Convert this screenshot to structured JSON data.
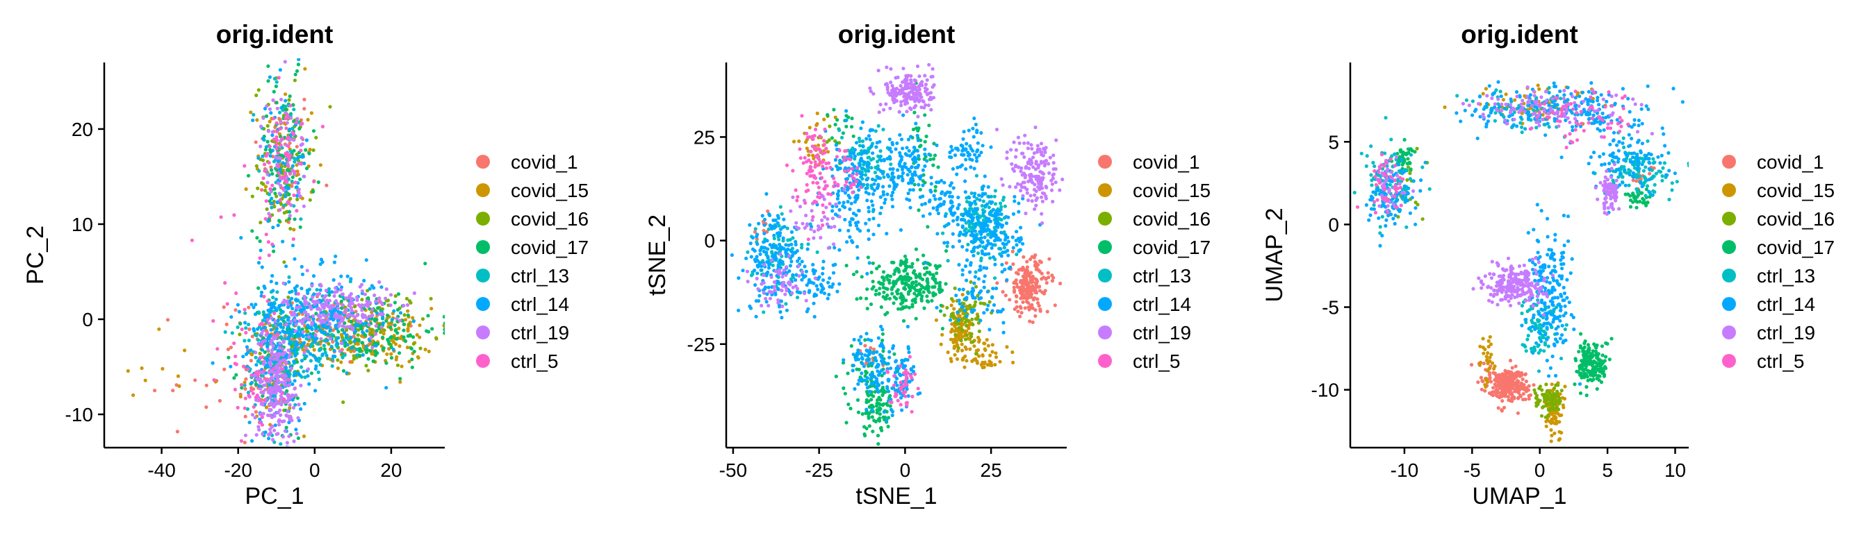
{
  "chart_data": [
    {
      "type": "scatter",
      "title": "orig.ident",
      "xlabel": "PC_1",
      "ylabel": "PC_2",
      "xlim": [
        -55,
        34
      ],
      "ylim": [
        -13.5,
        27
      ],
      "xticks": [
        -40,
        -20,
        0,
        20
      ],
      "yticks": [
        -10,
        0,
        10,
        20
      ],
      "legend_position": "right",
      "series": [
        {
          "name": "covid_1",
          "color": "#F8766D",
          "clusters": [
            {
              "x": -8,
              "y": 17,
              "sx": 4,
              "sy": 4,
              "n": 40
            },
            {
              "x": 2,
              "y": -1,
              "sx": 10,
              "sy": 2,
              "n": 120
            },
            {
              "x": -12,
              "y": -6,
              "sx": 4,
              "sy": 3,
              "n": 60
            },
            {
              "x": -28,
              "y": -6,
              "sx": 12,
              "sy": 3,
              "n": 18
            }
          ]
        },
        {
          "name": "covid_15",
          "color": "#CD9600",
          "clusters": [
            {
              "x": -8,
              "y": 17,
              "sx": 4,
              "sy": 4,
              "n": 40
            },
            {
              "x": 15,
              "y": -2,
              "sx": 8,
              "sy": 1.6,
              "n": 150
            },
            {
              "x": -10,
              "y": -6,
              "sx": 4,
              "sy": 3,
              "n": 50
            },
            {
              "x": -40,
              "y": -6,
              "sx": 8,
              "sy": 2.5,
              "n": 10
            }
          ]
        },
        {
          "name": "covid_16",
          "color": "#7CAE00",
          "clusters": [
            {
              "x": -8,
              "y": 17,
              "sx": 4,
              "sy": 4,
              "n": 70
            },
            {
              "x": -10,
              "y": 13,
              "sx": 2,
              "sy": 1.5,
              "n": 20
            },
            {
              "x": 12,
              "y": -1,
              "sx": 9,
              "sy": 2,
              "n": 100
            },
            {
              "x": -10,
              "y": -5,
              "sx": 4,
              "sy": 3,
              "n": 40
            }
          ]
        },
        {
          "name": "covid_17",
          "color": "#00BE67",
          "clusters": [
            {
              "x": -8,
              "y": 17,
              "sx": 4,
              "sy": 4,
              "n": 80
            },
            {
              "x": 14,
              "y": -1,
              "sx": 9,
              "sy": 2,
              "n": 160
            },
            {
              "x": -10,
              "y": -5,
              "sx": 4,
              "sy": 4,
              "n": 60
            }
          ]
        },
        {
          "name": "ctrl_13",
          "color": "#00BFC4",
          "clusters": [
            {
              "x": -8,
              "y": 17,
              "sx": 4,
              "sy": 4,
              "n": 40
            },
            {
              "x": -2,
              "y": -1,
              "sx": 8,
              "sy": 2.5,
              "n": 130
            },
            {
              "x": -10,
              "y": -5,
              "sx": 4,
              "sy": 3.5,
              "n": 70
            }
          ]
        },
        {
          "name": "ctrl_14",
          "color": "#00A9FF",
          "clusters": [
            {
              "x": -8,
              "y": 17,
              "sx": 3.5,
              "sy": 4,
              "n": 60
            },
            {
              "x": 0,
              "y": 0,
              "sx": 9,
              "sy": 2.5,
              "n": 260
            },
            {
              "x": -10,
              "y": -4,
              "sx": 4,
              "sy": 4,
              "n": 160
            }
          ]
        },
        {
          "name": "ctrl_19",
          "color": "#C77CFF",
          "clusters": [
            {
              "x": -8,
              "y": 17,
              "sx": 3,
              "sy": 3.5,
              "n": 60
            },
            {
              "x": 6,
              "y": 1,
              "sx": 7,
              "sy": 1.5,
              "n": 200
            },
            {
              "x": -10,
              "y": -7,
              "sx": 3,
              "sy": 3,
              "n": 230
            }
          ]
        },
        {
          "name": "ctrl_5",
          "color": "#FF61CC",
          "clusters": [
            {
              "x": -8,
              "y": 17,
              "sx": 3,
              "sy": 3,
              "n": 60
            },
            {
              "x": -16,
              "y": 5,
              "sx": 5,
              "sy": 7,
              "n": 30
            },
            {
              "x": -16,
              "y": -6,
              "sx": 4,
              "sy": 3,
              "n": 40
            }
          ]
        }
      ]
    },
    {
      "type": "scatter",
      "title": "orig.ident",
      "xlabel": "tSNE_1",
      "ylabel": "tSNE_2",
      "xlim": [
        -52,
        47
      ],
      "ylim": [
        -50,
        43
      ],
      "xticks": [
        -50,
        -25,
        0,
        25
      ],
      "yticks": [
        -25,
        0,
        25
      ],
      "legend_position": "right",
      "series": [
        {
          "name": "covid_1",
          "color": "#F8766D",
          "clusters": [
            {
              "x": 36,
              "y": -11,
              "sx": 3,
              "sy": 3.5,
              "n": 200
            },
            {
              "x": -42,
              "y": 3,
              "sx": 2,
              "sy": 2,
              "n": 10
            },
            {
              "x": -10,
              "y": -28,
              "sx": 2,
              "sy": 2,
              "n": 10
            }
          ]
        },
        {
          "name": "covid_15",
          "color": "#CD9600",
          "clusters": [
            {
              "x": 16,
              "y": -22,
              "sx": 2.5,
              "sy": 3.5,
              "n": 110
            },
            {
              "x": 24,
              "y": -28,
              "sx": 3,
              "sy": 2,
              "n": 40
            },
            {
              "x": -26,
              "y": 23,
              "sx": 3,
              "sy": 3,
              "n": 30
            }
          ]
        },
        {
          "name": "covid_16",
          "color": "#7CAE00",
          "clusters": [
            {
              "x": 18,
              "y": -18,
              "sx": 3,
              "sy": 3,
              "n": 70
            },
            {
              "x": -22,
              "y": 24,
              "sx": 3,
              "sy": 3,
              "n": 10
            }
          ]
        },
        {
          "name": "covid_17",
          "color": "#00BE67",
          "clusters": [
            {
              "x": 1,
              "y": -11,
              "sx": 6,
              "sy": 3,
              "n": 260
            },
            {
              "x": -9,
              "y": -40,
              "sx": 3,
              "sy": 3.5,
              "n": 100
            },
            {
              "x": -10,
              "y": -30,
              "sx": 3,
              "sy": 3,
              "n": 40
            },
            {
              "x": 5,
              "y": 20,
              "sx": 2,
              "sy": 6,
              "n": 40
            },
            {
              "x": -18,
              "y": 28,
              "sx": 2,
              "sy": 2,
              "n": 15
            }
          ]
        },
        {
          "name": "ctrl_13",
          "color": "#00BFC4",
          "clusters": [
            {
              "x": 22,
              "y": 5,
              "sx": 4,
              "sy": 4,
              "n": 120
            },
            {
              "x": -12,
              "y": 20,
              "sx": 4,
              "sy": 4,
              "n": 80
            },
            {
              "x": -36,
              "y": -4,
              "sx": 4,
              "sy": 5,
              "n": 80
            }
          ]
        },
        {
          "name": "ctrl_14",
          "color": "#00A9FF",
          "clusters": [
            {
              "x": 24,
              "y": 2,
              "sx": 5,
              "sy": 5,
              "n": 220
            },
            {
              "x": -14,
              "y": 12,
              "sx": 5,
              "sy": 7,
              "n": 200
            },
            {
              "x": -38,
              "y": -5,
              "sx": 4,
              "sy": 6,
              "n": 180
            },
            {
              "x": 0,
              "y": 18,
              "sx": 4,
              "sy": 4,
              "n": 120
            },
            {
              "x": 18,
              "y": 22,
              "sx": 3,
              "sy": 3,
              "n": 60
            },
            {
              "x": 12,
              "y": 10,
              "sx": 3,
              "sy": 3,
              "n": 50
            },
            {
              "x": 21,
              "y": -14,
              "sx": 4,
              "sy": 3,
              "n": 60
            },
            {
              "x": -10,
              "y": -30,
              "sx": 3,
              "sy": 4,
              "n": 100
            },
            {
              "x": -1,
              "y": -34,
              "sx": 2.5,
              "sy": 4,
              "n": 80
            },
            {
              "x": -26,
              "y": -10,
              "sx": 3,
              "sy": 3,
              "n": 60
            }
          ]
        },
        {
          "name": "ctrl_19",
          "color": "#C77CFF",
          "clusters": [
            {
              "x": 1,
              "y": 36,
              "sx": 3.5,
              "sy": 2.5,
              "n": 180
            },
            {
              "x": 38,
              "y": 16,
              "sx": 3.5,
              "sy": 5,
              "n": 160
            },
            {
              "x": -36,
              "y": -10,
              "sx": 4,
              "sy": 3,
              "n": 60
            },
            {
              "x": -26,
              "y": 5,
              "sx": 3,
              "sy": 4,
              "n": 40
            }
          ]
        },
        {
          "name": "ctrl_5",
          "color": "#FF61CC",
          "clusters": [
            {
              "x": -26,
              "y": 18,
              "sx": 3,
              "sy": 5,
              "n": 100
            },
            {
              "x": -1,
              "y": -35,
              "sx": 2,
              "sy": 3,
              "n": 40
            },
            {
              "x": -16,
              "y": 16,
              "sx": 2,
              "sy": 2,
              "n": 20
            }
          ]
        }
      ]
    },
    {
      "type": "scatter",
      "title": "orig.ident",
      "xlabel": "UMAP_1",
      "ylabel": "UMAP_2",
      "xlim": [
        -14,
        11
      ],
      "ylim": [
        -13.5,
        9.8
      ],
      "xticks": [
        -10,
        -5,
        0,
        5,
        10
      ],
      "yticks": [
        -10,
        -5,
        0,
        5
      ],
      "legend_position": "right",
      "series": [
        {
          "name": "covid_1",
          "color": "#F8766D",
          "clusters": [
            {
              "x": -2.3,
              "y": -9.7,
              "sx": 0.7,
              "sy": 0.5,
              "n": 260
            },
            {
              "x": -3.8,
              "y": -9.2,
              "sx": 0.5,
              "sy": 0.6,
              "n": 20
            },
            {
              "x": 7.5,
              "y": 2.8,
              "sx": 0.5,
              "sy": 0.4,
              "n": 15
            }
          ]
        },
        {
          "name": "covid_15",
          "color": "#CD9600",
          "clusters": [
            {
              "x": 1.0,
              "y": -11.2,
              "sx": 0.4,
              "sy": 0.8,
              "n": 80
            },
            {
              "x": 0.3,
              "y": 7.2,
              "sx": 2.5,
              "sy": 0.6,
              "n": 60
            },
            {
              "x": -3.8,
              "y": -8.3,
              "sx": 0.3,
              "sy": 0.8,
              "n": 30
            }
          ]
        },
        {
          "name": "covid_16",
          "color": "#7CAE00",
          "clusters": [
            {
              "x": 0.6,
              "y": -10.6,
              "sx": 0.5,
              "sy": 0.5,
              "n": 80
            },
            {
              "x": -10.2,
              "y": 2.2,
              "sx": 0.8,
              "sy": 1.0,
              "n": 20
            }
          ]
        },
        {
          "name": "covid_17",
          "color": "#00BE67",
          "clusters": [
            {
              "x": 3.9,
              "y": -8.4,
              "sx": 0.6,
              "sy": 0.7,
              "n": 170
            },
            {
              "x": -10.0,
              "y": 4.0,
              "sx": 0.5,
              "sy": 0.4,
              "n": 40
            },
            {
              "x": 7.2,
              "y": 1.6,
              "sx": 0.5,
              "sy": 0.3,
              "n": 30
            }
          ]
        },
        {
          "name": "ctrl_13",
          "color": "#00BFC4",
          "clusters": [
            {
              "x": -11.0,
              "y": 2.3,
              "sx": 0.9,
              "sy": 1.1,
              "n": 100
            },
            {
              "x": 7.2,
              "y": 3.2,
              "sx": 1.2,
              "sy": 0.7,
              "n": 110
            },
            {
              "x": 0.0,
              "y": -6.0,
              "sx": 0.6,
              "sy": 1.0,
              "n": 80
            },
            {
              "x": -1.5,
              "y": 7.0,
              "sx": 2.0,
              "sy": 0.7,
              "n": 60
            }
          ]
        },
        {
          "name": "ctrl_14",
          "color": "#00A9FF",
          "clusters": [
            {
              "x": 0.8,
              "y": -4.5,
              "sx": 0.8,
              "sy": 1.8,
              "n": 200
            },
            {
              "x": -11.0,
              "y": 1.8,
              "sx": 0.9,
              "sy": 1.0,
              "n": 100
            },
            {
              "x": 1.5,
              "y": 7.0,
              "sx": 3.2,
              "sy": 0.7,
              "n": 200
            },
            {
              "x": 6.5,
              "y": 4.0,
              "sx": 1.5,
              "sy": 1.0,
              "n": 100
            }
          ]
        },
        {
          "name": "ctrl_19",
          "color": "#C77CFF",
          "clusters": [
            {
              "x": -1.8,
              "y": -3.6,
              "sx": 1.1,
              "sy": 0.6,
              "n": 220
            },
            {
              "x": 5.2,
              "y": 2.0,
              "sx": 0.4,
              "sy": 0.6,
              "n": 80
            },
            {
              "x": 1.0,
              "y": 7.0,
              "sx": 3.0,
              "sy": 0.6,
              "n": 100
            },
            {
              "x": -11.2,
              "y": 2.2,
              "sx": 0.7,
              "sy": 0.8,
              "n": 40
            }
          ]
        },
        {
          "name": "ctrl_5",
          "color": "#FF61CC",
          "clusters": [
            {
              "x": -11.3,
              "y": 2.5,
              "sx": 0.7,
              "sy": 0.9,
              "n": 40
            },
            {
              "x": 3.5,
              "y": 6.5,
              "sx": 2.0,
              "sy": 0.8,
              "n": 60
            }
          ]
        }
      ]
    }
  ]
}
